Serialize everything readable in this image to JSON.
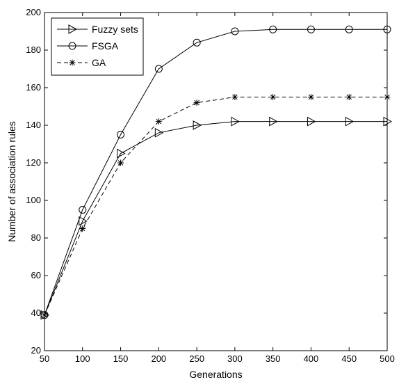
{
  "chart_data": {
    "type": "line",
    "xlabel": "Generations",
    "ylabel": "Number of association rules",
    "xlim": [
      50,
      500
    ],
    "ylim": [
      20,
      200
    ],
    "xticks": [
      50,
      100,
      150,
      200,
      250,
      300,
      350,
      400,
      450,
      500
    ],
    "yticks": [
      20,
      40,
      60,
      80,
      100,
      120,
      140,
      160,
      180,
      200
    ],
    "grid": false,
    "legend_position": "top-left",
    "x": [
      50,
      100,
      150,
      200,
      250,
      300,
      350,
      400,
      450,
      500
    ],
    "series": [
      {
        "name": "Fuzzy sets",
        "marker": "triangle-right",
        "line_style": "solid",
        "values": [
          39,
          89,
          125,
          136,
          140,
          142,
          142,
          142,
          142,
          142
        ]
      },
      {
        "name": "FSGA",
        "marker": "circle",
        "line_style": "solid",
        "values": [
          39,
          95,
          135,
          170,
          184,
          190,
          191,
          191,
          191,
          191
        ]
      },
      {
        "name": "GA",
        "marker": "asterisk",
        "line_style": "dashed",
        "values": [
          39,
          85,
          120,
          142,
          152,
          155,
          155,
          155,
          155,
          155
        ]
      }
    ]
  }
}
